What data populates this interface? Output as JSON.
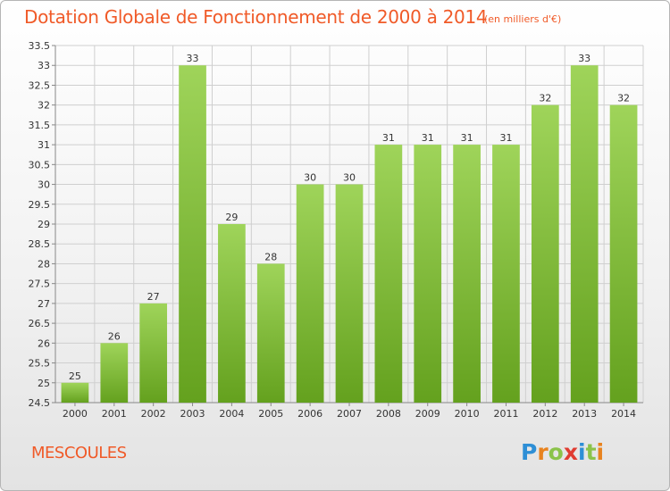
{
  "title": "Dotation Globale de Fonctionnement de 2000 à 2014",
  "unit": "(en milliers d'€)",
  "town": "MESCOULES",
  "logo": {
    "letters": [
      "P",
      "r",
      "o",
      "x",
      "i",
      "t",
      "i"
    ],
    "colors": [
      "#2e8fd6",
      "#e8831f",
      "#8bc34a",
      "#e03c31",
      "#2e8fd6",
      "#8bc34a",
      "#e8831f"
    ]
  },
  "colors": {
    "bar_top": "#9fd45a",
    "bar_bottom": "#64a11e",
    "grid": "#cfcfcf",
    "accent": "#f05a28"
  },
  "chart_data": {
    "type": "bar",
    "categories": [
      "2000",
      "2001",
      "2002",
      "2003",
      "2004",
      "2005",
      "2006",
      "2007",
      "2008",
      "2009",
      "2010",
      "2011",
      "2012",
      "2013",
      "2014"
    ],
    "values": [
      25,
      26,
      27,
      33,
      29,
      28,
      30,
      30,
      31,
      31,
      31,
      31,
      32,
      33,
      32
    ],
    "data_labels": [
      "25",
      "26",
      "27",
      "33",
      "29",
      "28",
      "30",
      "30",
      "31",
      "31",
      "31",
      "31",
      "32",
      "33",
      "32"
    ],
    "ylim": [
      24.5,
      33.5
    ],
    "yticks": [
      "24.5",
      "25",
      "25.5",
      "26",
      "26.5",
      "27",
      "27.5",
      "28",
      "28.5",
      "29",
      "29.5",
      "30",
      "30.5",
      "31",
      "31.5",
      "32",
      "32.5",
      "33",
      "33.5"
    ],
    "grid": true,
    "xlabel": "",
    "ylabel": ""
  }
}
